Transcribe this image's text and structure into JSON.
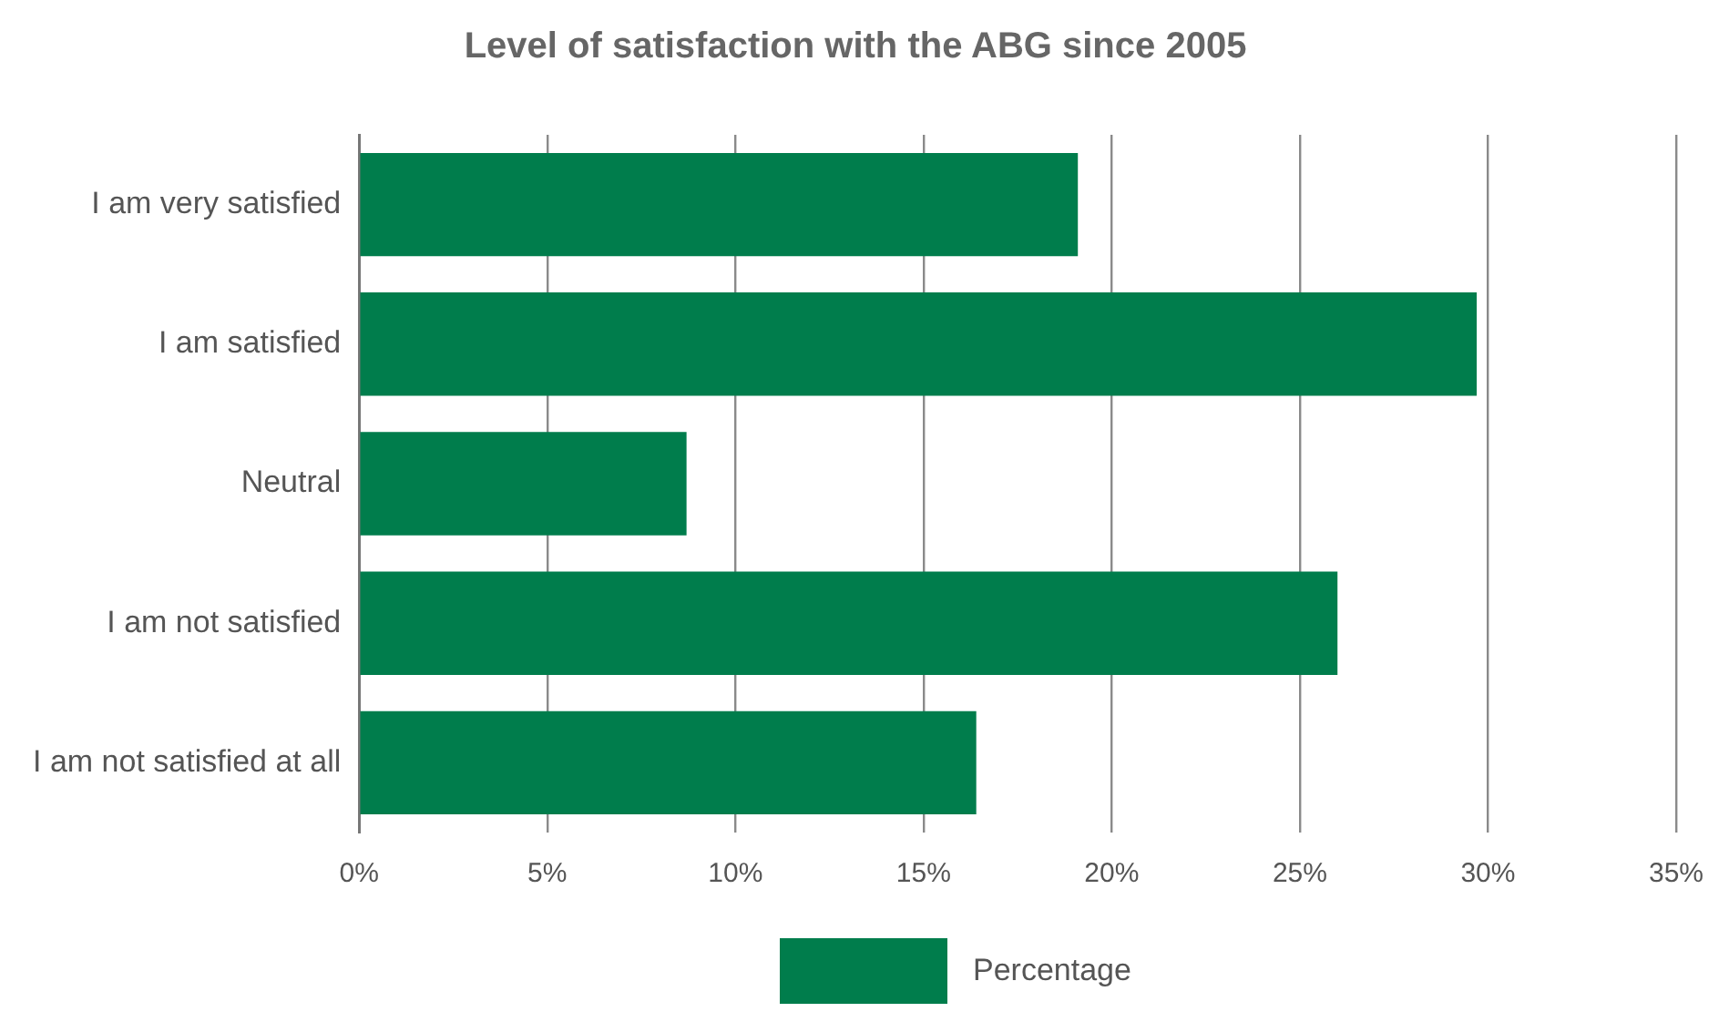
{
  "chart_data": {
    "type": "bar",
    "orientation": "horizontal",
    "title": "Level of satisfaction with the ABG since 2005",
    "categories": [
      "I am very satisfied",
      "I am satisfied",
      "Neutral",
      "I am not satisfied",
      "I am not satisfied at all"
    ],
    "series": [
      {
        "name": "Percentage",
        "color": "#007d4c",
        "values": [
          19.1,
          29.7,
          8.7,
          26.0,
          16.4
        ]
      }
    ],
    "xlim": [
      0,
      35
    ],
    "xticks": [
      {
        "value": 0,
        "label": "0%"
      },
      {
        "value": 5,
        "label": "5%"
      },
      {
        "value": 10,
        "label": "10%"
      },
      {
        "value": 15,
        "label": "15%"
      },
      {
        "value": 20,
        "label": "20%"
      },
      {
        "value": 25,
        "label": "25%"
      },
      {
        "value": 30,
        "label": "30%"
      },
      {
        "value": 35,
        "label": "35%"
      }
    ],
    "grid": "x",
    "legend": "bottom"
  }
}
